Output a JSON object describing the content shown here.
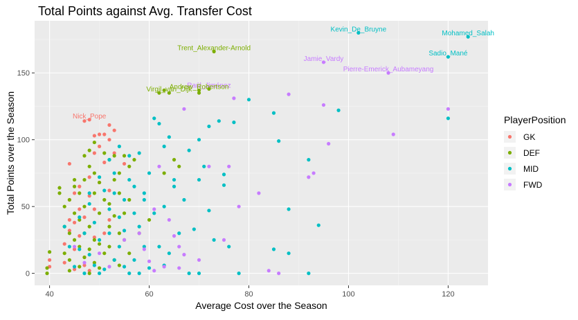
{
  "chart_data": {
    "type": "scatter",
    "title": "Total Points against Avg. Transfer Cost",
    "xlabel": "Average Cost over the Season",
    "ylabel": "Total Points over the Season",
    "xlim": [
      37,
      128
    ],
    "ylim": [
      -9,
      189
    ],
    "xticks": [
      40,
      60,
      80,
      100,
      120
    ],
    "yticks": [
      0,
      50,
      100,
      150
    ],
    "grid": true,
    "legend": {
      "title": "PlayerPosition",
      "position": "right",
      "items": [
        {
          "label": "GK",
          "color": "#F8766D"
        },
        {
          "label": "DEF",
          "color": "#7CAE00"
        },
        {
          "label": "MID",
          "color": "#00BFC4"
        },
        {
          "label": "FWD",
          "color": "#C77CFF"
        }
      ]
    },
    "series": [
      {
        "name": "GK",
        "color": "#F8766D",
        "points": [
          [
            40,
            5
          ],
          [
            40,
            10
          ],
          [
            43,
            22
          ],
          [
            43,
            8
          ],
          [
            44,
            40
          ],
          [
            44,
            55
          ],
          [
            44,
            32
          ],
          [
            45,
            18
          ],
          [
            45,
            38
          ],
          [
            45,
            60
          ],
          [
            45,
            3
          ],
          [
            46,
            28
          ],
          [
            46,
            48
          ],
          [
            46,
            65
          ],
          [
            47,
            12
          ],
          [
            47,
            42
          ],
          [
            48,
            72
          ],
          [
            48,
            2
          ],
          [
            48,
            58
          ],
          [
            49,
            90
          ],
          [
            49,
            103
          ],
          [
            49,
            27
          ],
          [
            50,
            104
          ],
          [
            50,
            95
          ],
          [
            50,
            68
          ],
          [
            51,
            104
          ],
          [
            51,
            83
          ],
          [
            52,
            111
          ],
          [
            52,
            100
          ],
          [
            52,
            62
          ],
          [
            52,
            40
          ],
          [
            53,
            107
          ],
          [
            53,
            90
          ],
          [
            55,
            82
          ],
          [
            47,
            114
          ],
          [
            48,
            115
          ],
          [
            44,
            82
          ],
          [
            47,
            6
          ],
          [
            51,
            30
          ],
          [
            49,
            48
          ]
        ]
      },
      {
        "name": "DEF",
        "color": "#7CAE00",
        "points": [
          [
            39.5,
            0
          ],
          [
            39.5,
            4
          ],
          [
            40,
            16
          ],
          [
            42,
            64
          ],
          [
            42,
            60
          ],
          [
            43,
            50
          ],
          [
            43,
            35
          ],
          [
            43,
            15
          ],
          [
            44,
            55
          ],
          [
            44,
            30
          ],
          [
            44,
            10
          ],
          [
            44,
            2
          ],
          [
            45,
            65
          ],
          [
            45,
            45
          ],
          [
            45,
            25
          ],
          [
            45,
            70
          ],
          [
            46,
            60
          ],
          [
            46,
            40
          ],
          [
            46,
            20
          ],
          [
            46,
            5
          ],
          [
            47,
            88
          ],
          [
            47,
            70
          ],
          [
            47,
            50
          ],
          [
            47,
            30
          ],
          [
            47,
            12
          ],
          [
            48,
            92
          ],
          [
            48,
            80
          ],
          [
            48,
            35
          ],
          [
            48,
            18
          ],
          [
            48,
            0
          ],
          [
            49,
            98
          ],
          [
            49,
            75
          ],
          [
            49,
            60
          ],
          [
            49,
            25
          ],
          [
            49,
            8
          ],
          [
            50,
            68
          ],
          [
            50,
            45
          ],
          [
            50,
            22
          ],
          [
            50,
            4
          ],
          [
            51,
            90
          ],
          [
            51,
            55
          ],
          [
            51,
            15
          ],
          [
            52,
            85
          ],
          [
            52,
            52
          ],
          [
            52,
            35
          ],
          [
            52,
            20
          ],
          [
            53,
            88
          ],
          [
            53,
            70
          ],
          [
            53,
            43
          ],
          [
            53,
            10
          ],
          [
            54,
            75
          ],
          [
            54,
            60
          ],
          [
            54,
            30
          ],
          [
            54,
            6
          ],
          [
            55,
            88
          ],
          [
            55,
            45
          ],
          [
            55,
            25
          ],
          [
            56,
            80
          ],
          [
            56,
            55
          ],
          [
            56,
            15
          ],
          [
            57,
            85
          ],
          [
            58,
            30
          ],
          [
            60,
            40
          ],
          [
            62,
            135
          ],
          [
            63,
            137
          ],
          [
            63,
            75
          ],
          [
            65,
            85
          ],
          [
            70,
            135
          ],
          [
            70,
            137
          ],
          [
            72,
            138
          ],
          [
            73,
            166
          ],
          [
            64,
            135
          ],
          [
            66,
            80
          ]
        ]
      },
      {
        "name": "MID",
        "color": "#00BFC4",
        "points": [
          [
            43,
            35
          ],
          [
            44,
            20
          ],
          [
            45,
            5
          ],
          [
            46,
            42
          ],
          [
            46,
            18
          ],
          [
            47,
            30
          ],
          [
            47,
            0
          ],
          [
            48,
            60
          ],
          [
            48,
            52
          ],
          [
            48,
            14
          ],
          [
            49,
            38
          ],
          [
            49,
            6
          ],
          [
            50,
            25
          ],
          [
            50,
            72
          ],
          [
            51,
            3
          ],
          [
            51,
            62
          ],
          [
            52,
            30
          ],
          [
            52,
            48
          ],
          [
            52,
            85
          ],
          [
            53,
            10
          ],
          [
            53,
            60
          ],
          [
            53,
            75
          ],
          [
            54,
            20
          ],
          [
            54,
            42
          ],
          [
            54,
            95
          ],
          [
            55,
            5
          ],
          [
            55,
            32
          ],
          [
            55,
            55
          ],
          [
            56,
            70
          ],
          [
            56,
            88
          ],
          [
            57,
            10
          ],
          [
            57,
            45
          ],
          [
            57,
            65
          ],
          [
            58,
            35
          ],
          [
            58,
            90
          ],
          [
            59,
            20
          ],
          [
            59,
            55
          ],
          [
            59,
            60
          ],
          [
            60,
            4
          ],
          [
            60,
            75
          ],
          [
            61,
            116
          ],
          [
            61,
            45
          ],
          [
            62,
            112
          ],
          [
            62,
            20
          ],
          [
            63,
            50
          ],
          [
            63,
            95
          ],
          [
            64,
            102
          ],
          [
            64,
            15
          ],
          [
            65,
            70
          ],
          [
            65,
            65
          ],
          [
            66,
            30
          ],
          [
            67,
            55
          ],
          [
            68,
            92
          ],
          [
            68,
            0
          ],
          [
            69,
            33
          ],
          [
            70,
            100
          ],
          [
            70,
            70
          ],
          [
            71,
            80
          ],
          [
            72,
            110
          ],
          [
            72,
            47
          ],
          [
            73,
            25
          ],
          [
            74,
            114
          ],
          [
            75,
            74
          ],
          [
            75,
            66
          ],
          [
            76,
            20
          ],
          [
            77,
            113
          ],
          [
            78,
            0
          ],
          [
            80,
            130
          ],
          [
            85,
            120
          ],
          [
            85,
            18
          ],
          [
            86,
            99
          ],
          [
            88,
            48
          ],
          [
            92,
            85
          ],
          [
            94,
            36
          ],
          [
            98,
            122
          ],
          [
            102,
            180
          ],
          [
            120,
            162
          ],
          [
            120,
            116
          ],
          [
            124,
            177
          ],
          [
            92,
            0
          ],
          [
            88,
            15
          ],
          [
            70,
            0
          ],
          [
            63,
            6
          ],
          [
            56,
            0
          ],
          [
            50,
            0
          ],
          [
            58,
            0
          ]
        ]
      },
      {
        "name": "FWD",
        "color": "#C77CFF",
        "points": [
          [
            45,
            20
          ],
          [
            47,
            8
          ],
          [
            50,
            15
          ],
          [
            52,
            5
          ],
          [
            55,
            25
          ],
          [
            58,
            30
          ],
          [
            59,
            18
          ],
          [
            60,
            9
          ],
          [
            61,
            48
          ],
          [
            62,
            80
          ],
          [
            63,
            5
          ],
          [
            64,
            40
          ],
          [
            65,
            28
          ],
          [
            66,
            4
          ],
          [
            66,
            20
          ],
          [
            67,
            14
          ],
          [
            67,
            123
          ],
          [
            70,
            10
          ],
          [
            72,
            80
          ],
          [
            75,
            25
          ],
          [
            76,
            80
          ],
          [
            77,
            131
          ],
          [
            78,
            50
          ],
          [
            82,
            60
          ],
          [
            84,
            2
          ],
          [
            88,
            134
          ],
          [
            92,
            72
          ],
          [
            93,
            75
          ],
          [
            95,
            126
          ],
          [
            95,
            158
          ],
          [
            96,
            97
          ],
          [
            108,
            150
          ],
          [
            109,
            104
          ],
          [
            120,
            123
          ],
          [
            86,
            0
          ],
          [
            61,
            2
          ]
        ]
      }
    ],
    "annotations": [
      {
        "text": "Kevin_De_Bruyne",
        "x": 102,
        "y": 180,
        "color": "#00BFC4"
      },
      {
        "text": "Mohamed_Salah",
        "x": 124,
        "y": 177,
        "color": "#00BFC4"
      },
      {
        "text": "Sadio_Mané",
        "x": 120,
        "y": 162,
        "color": "#00BFC4"
      },
      {
        "text": "Trent_Alexander-Arnold",
        "x": 73,
        "y": 166,
        "color": "#7CAE00"
      },
      {
        "text": "Jamie_Vardy",
        "x": 95,
        "y": 158,
        "color": "#C77CFF"
      },
      {
        "text": "Pierre-Emerick_Aubameyang",
        "x": 108,
        "y": 150,
        "color": "#C77CFF"
      },
      {
        "text": "Raúl_Jiménez",
        "x": 72,
        "y": 138,
        "color": "#C77CFF"
      },
      {
        "text": "Andrew_Robertson",
        "x": 70,
        "y": 137,
        "color": "#7CAE00"
      },
      {
        "text": "Virgil_van_Dijk",
        "x": 64,
        "y": 135,
        "color": "#7CAE00"
      },
      {
        "text": "Nick_Pope",
        "x": 48,
        "y": 115,
        "color": "#F8766D"
      }
    ]
  }
}
